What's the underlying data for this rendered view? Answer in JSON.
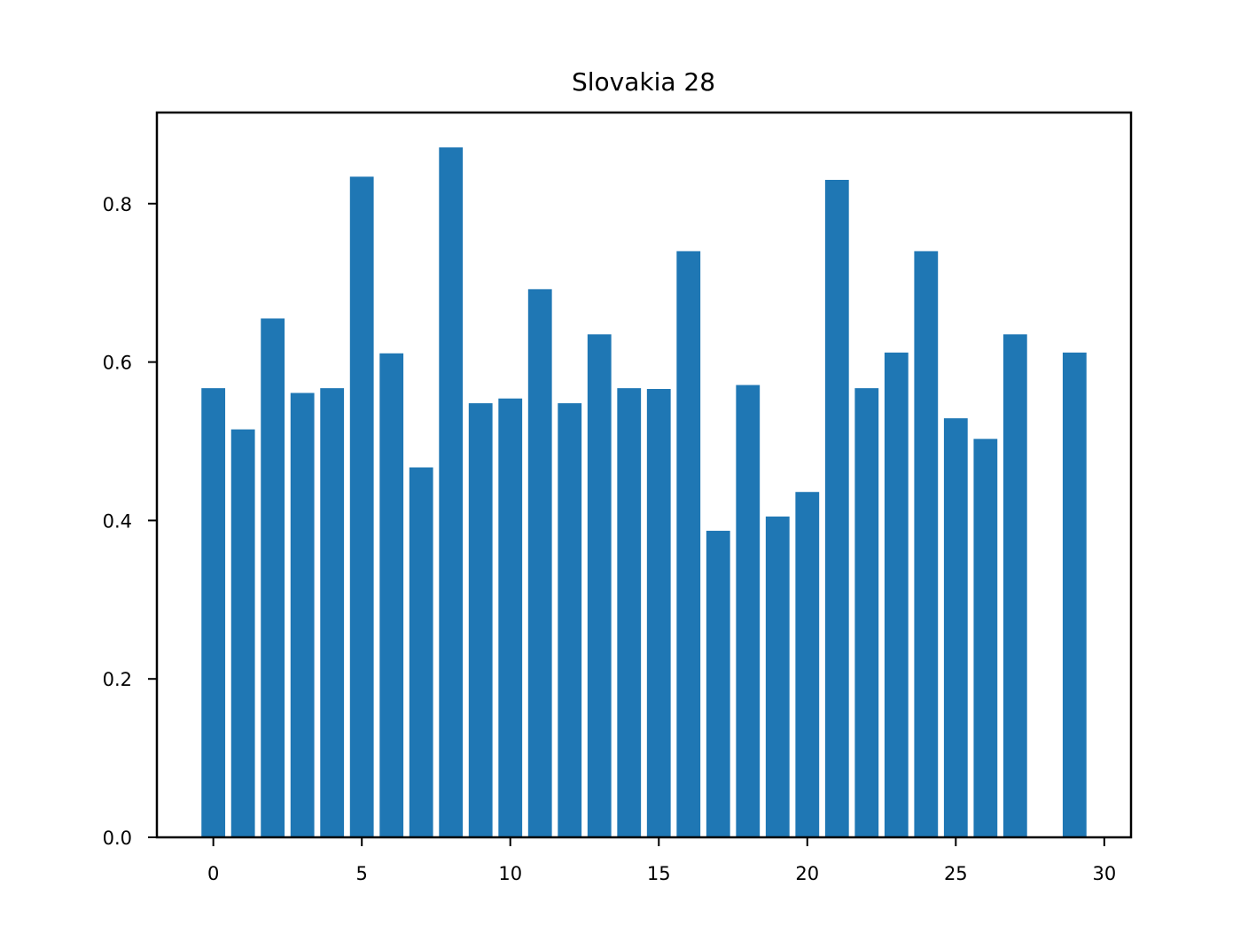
{
  "chart_data": {
    "type": "bar",
    "title": "Slovakia 28",
    "xlabel": "",
    "ylabel": "",
    "x": [
      0,
      1,
      2,
      3,
      4,
      5,
      6,
      7,
      8,
      9,
      10,
      11,
      12,
      13,
      14,
      15,
      16,
      17,
      18,
      19,
      20,
      21,
      22,
      23,
      24,
      25,
      26,
      27,
      29
    ],
    "values": [
      0.567,
      0.515,
      0.655,
      0.561,
      0.567,
      0.834,
      0.611,
      0.467,
      0.871,
      0.548,
      0.554,
      0.692,
      0.548,
      0.635,
      0.567,
      0.566,
      0.74,
      0.387,
      0.571,
      0.405,
      0.436,
      0.83,
      0.567,
      0.612,
      0.74,
      0.529,
      0.503,
      0.635,
      0.612
    ],
    "xlim": [
      -1.9,
      30.9
    ],
    "ylim": [
      0,
      0.915
    ],
    "xticks": [
      "0",
      "5",
      "10",
      "15",
      "20",
      "25",
      "30"
    ],
    "yticks": [
      "0.0",
      "0.2",
      "0.4",
      "0.6",
      "0.8"
    ],
    "bar_color": "#1f77b4",
    "grid": false,
    "legend": "none"
  }
}
